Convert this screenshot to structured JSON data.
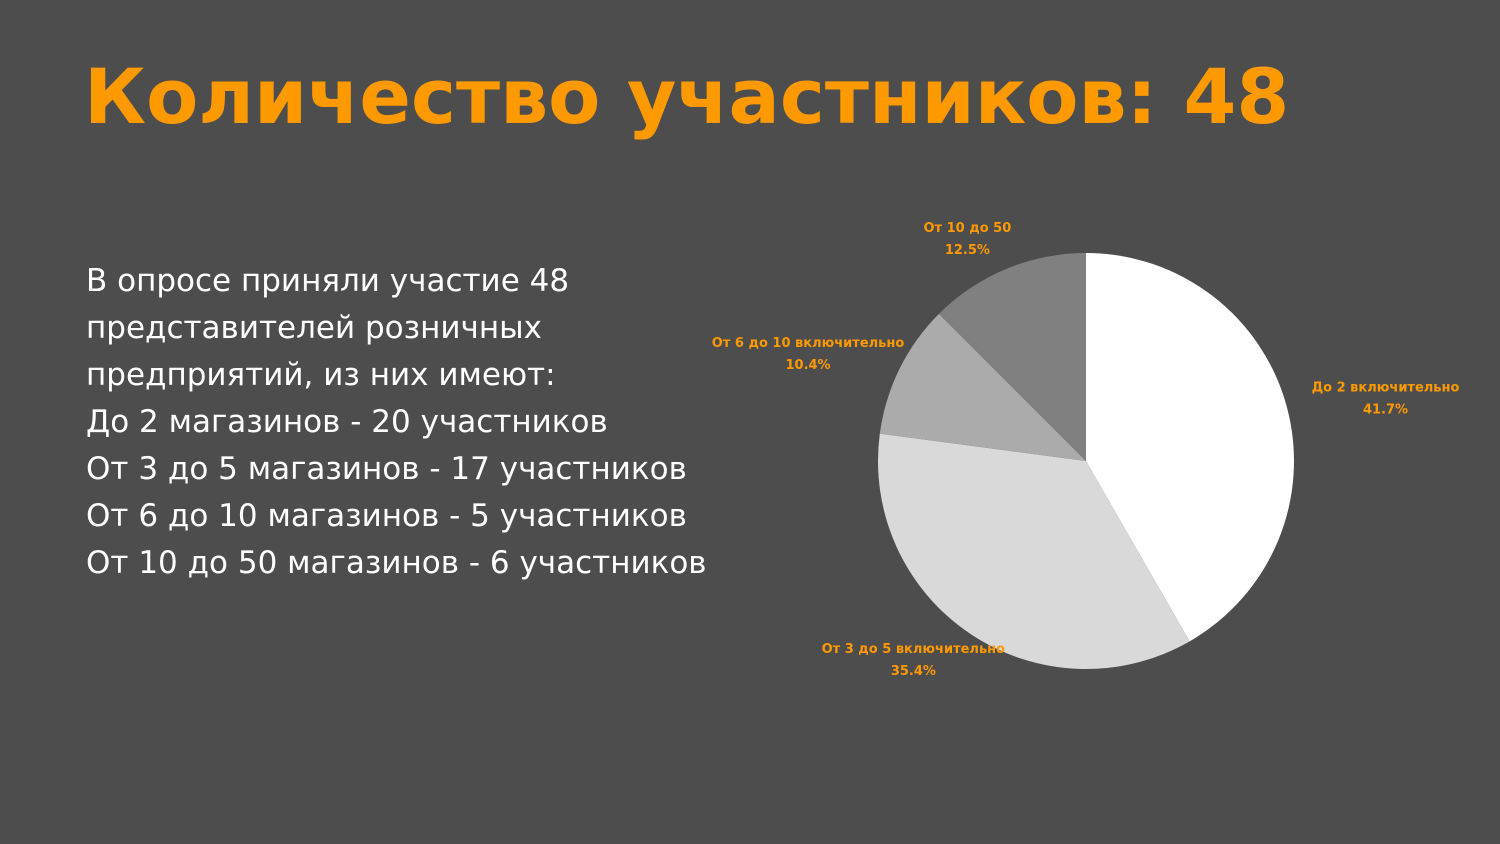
{
  "title": "Количество участников: 48",
  "body": [
    "В опросе приняли участие 48",
    "представителей розничных",
    "предприятий, из них имеют:",
    "До 2 магазинов - 20 участников",
    "От 3 до 5 магазинов - 17 участников",
    "От 6 до 10 магазинов - 5 участников",
    "От 10 до 50 магазинов - 6 участников"
  ],
  "chart_data": {
    "type": "pie",
    "categories": [
      "До 2 включительно",
      "От 3 до 5 включительно",
      "От 6 до 10 включительно",
      "От 10 до 50"
    ],
    "values": [
      41.7,
      35.4,
      10.4,
      12.5
    ],
    "value_labels": [
      "41.7%",
      "35.4%",
      "10.4%",
      "12.5%"
    ],
    "colors": [
      "#ffffff",
      "#d9d9d9",
      "#ababab",
      "#808080"
    ],
    "label_color": "#ff9900"
  }
}
